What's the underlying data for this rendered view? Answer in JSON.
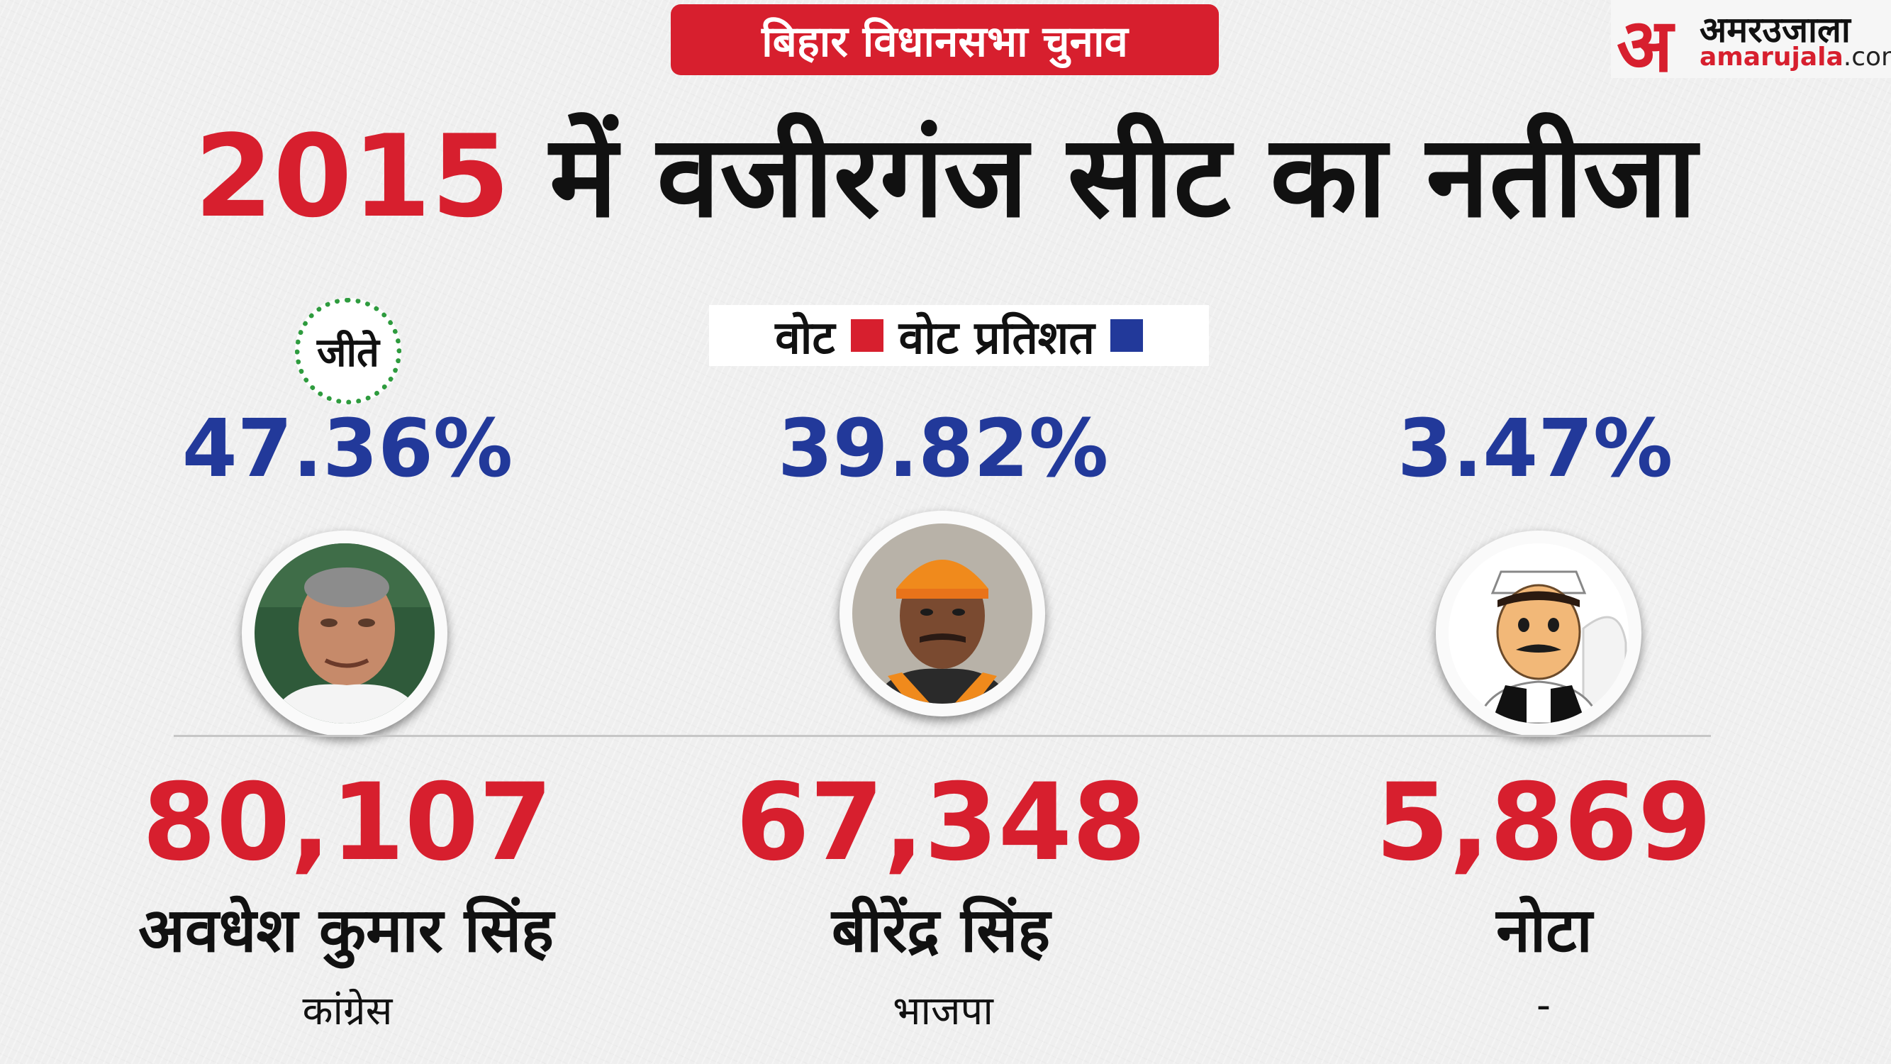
{
  "header": {
    "badge": "बिहार विधानसभा चुनाव",
    "headline_year": "2015",
    "headline_rest": " में वजीरगंज  सीट का नतीजा"
  },
  "logo": {
    "mark": "अ",
    "hindi": "अमरउजाला",
    "english_main": "amarujala",
    "english_tld": ".com"
  },
  "legend": {
    "votes_label": "वोट",
    "percent_label": "वोट प्रतिशत",
    "votes_color": "#d71f2e",
    "percent_color": "#22399a"
  },
  "winner_badge": "जीते",
  "candidates": [
    {
      "percent": "47.36%",
      "votes": "80,107",
      "name": "अवधेश कुमार सिंह",
      "party": "कांग्रेस",
      "icon": "candidate-photo"
    },
    {
      "percent": "39.82%",
      "votes": "67,348",
      "name": "बीरेंद्र सिंह",
      "party": "भाजपा",
      "icon": "candidate-photo"
    },
    {
      "percent": "3.47%",
      "votes": "5,869",
      "name": "नोटा",
      "party": "-",
      "icon": "nota-cartoon"
    }
  ]
}
